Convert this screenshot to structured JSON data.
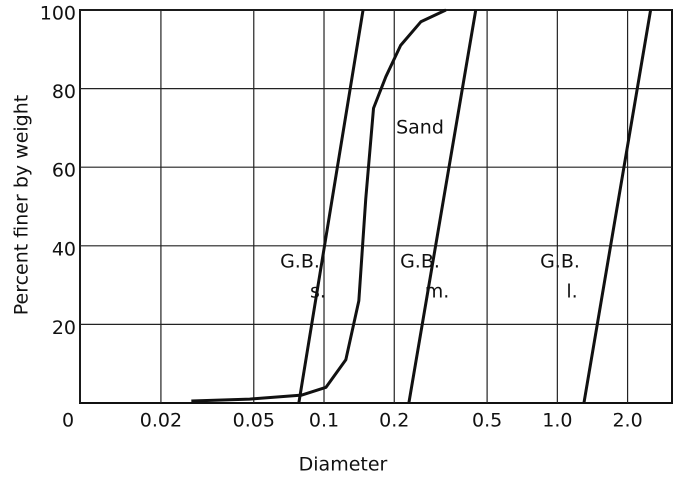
{
  "chart_data": {
    "type": "line",
    "x_label": "Diameter",
    "y_label": "Percent finer by weight",
    "log_x": true,
    "grid": true,
    "color": "#111111",
    "xlim": [
      0.009,
      3.1
    ],
    "ylim": [
      0,
      100
    ],
    "xticks": [
      {
        "value": 0.009,
        "label": "0"
      },
      0.02,
      0.05,
      0.1,
      0.2,
      0.5,
      {
        "value": 1.0,
        "label": "1.0"
      },
      {
        "value": 2.0,
        "label": "2.0"
      }
    ],
    "yticks": [
      20,
      40,
      60,
      80,
      100
    ],
    "series": [
      {
        "label_lines": [
          "Sand"
        ],
        "x": [
          0.027,
          0.048,
          0.08,
          0.102,
          0.124,
          0.141,
          0.151,
          0.163,
          0.184,
          0.213,
          0.26,
          0.333
        ],
        "values": [
          0.5,
          1,
          2,
          4,
          11,
          26,
          52,
          75,
          83,
          91,
          97,
          100
        ]
      },
      {
        "label_lines": [
          "G.B.",
          "s."
        ],
        "x": [
          0.078,
          0.147
        ],
        "values": [
          0,
          100
        ]
      },
      {
        "label_lines": [
          "G.B.",
          "m."
        ],
        "x": [
          0.231,
          0.447
        ],
        "values": [
          0,
          100
        ]
      },
      {
        "label_lines": [
          "G.B.",
          "l."
        ],
        "x": [
          1.3,
          2.51
        ],
        "values": [
          0,
          100
        ]
      }
    ]
  }
}
